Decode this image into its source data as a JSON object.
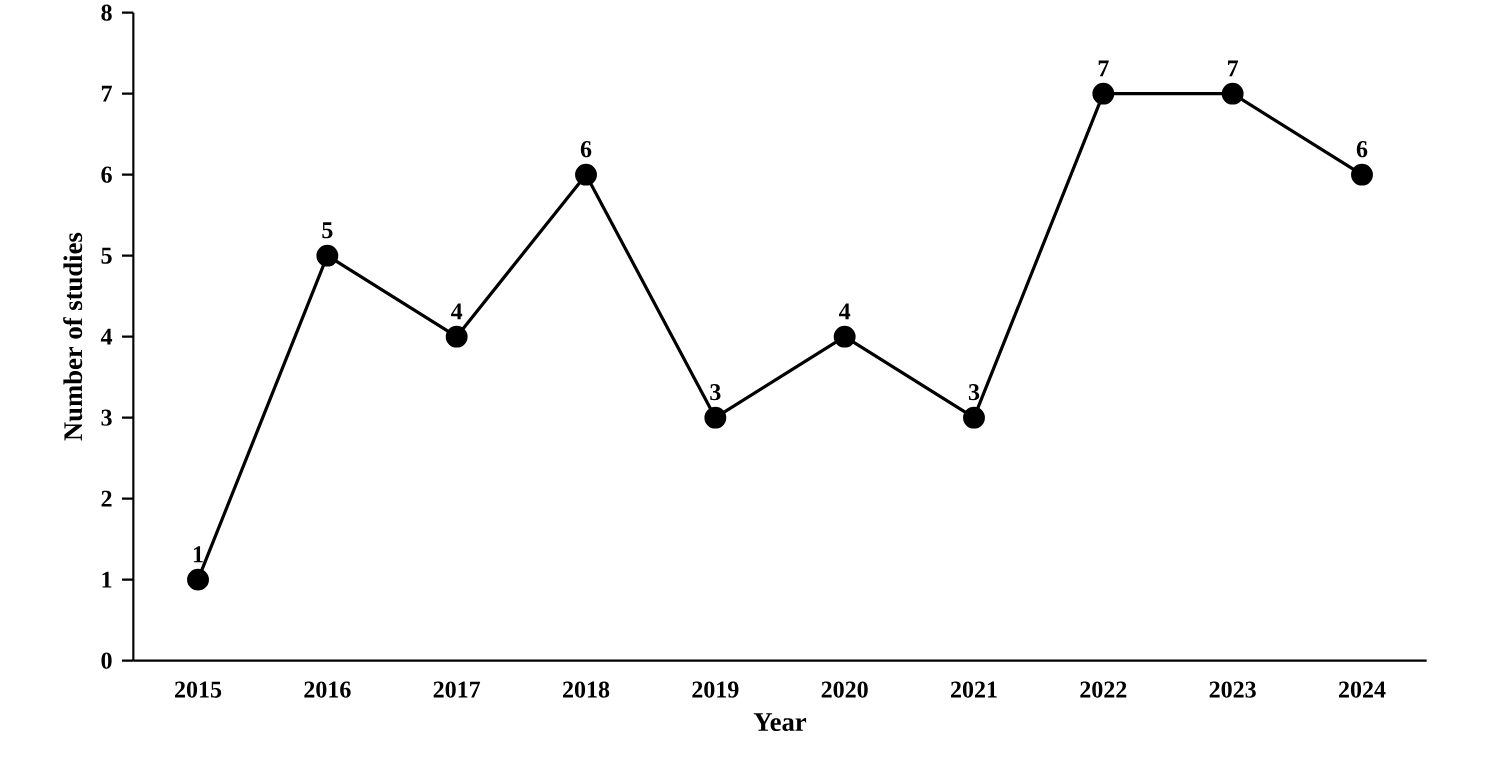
{
  "chart_data": {
    "type": "line",
    "xlabel": "Year",
    "ylabel": "Number of studies",
    "categories": [
      "2015",
      "2016",
      "2017",
      "2018",
      "2019",
      "2020",
      "2021",
      "2022",
      "2023",
      "2024"
    ],
    "values": [
      1,
      5,
      4,
      6,
      3,
      4,
      3,
      7,
      7,
      6
    ],
    "color": "#000000",
    "marker": "circle",
    "line_style": "solid",
    "data_labels": true,
    "grid": false,
    "ylim": [
      0,
      8
    ],
    "yticks": [
      0,
      1,
      2,
      3,
      4,
      5,
      6,
      7,
      8
    ]
  }
}
